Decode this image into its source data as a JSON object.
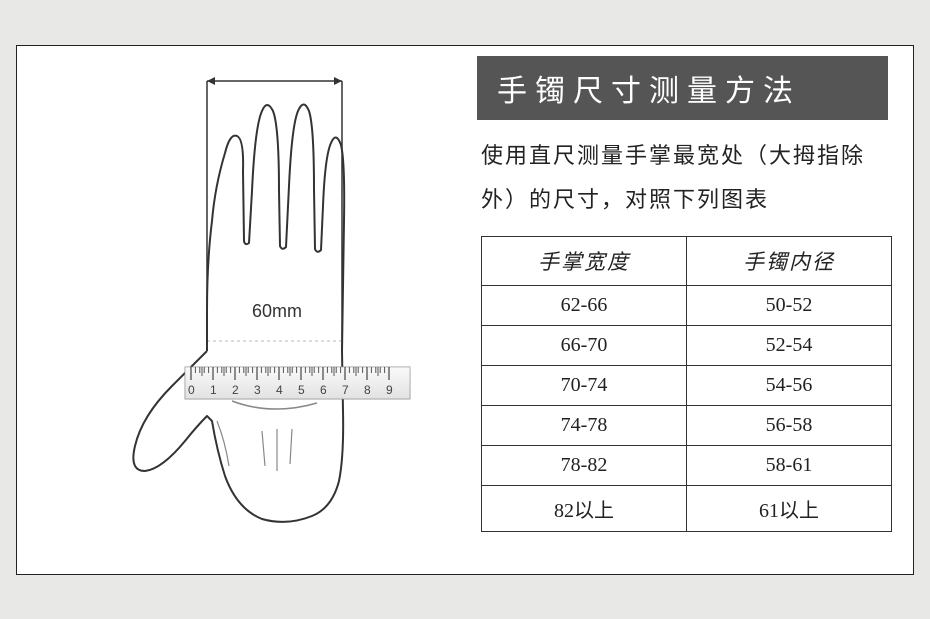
{
  "title": "手镯尺寸测量方法",
  "instructions": "使用直尺测量手掌最宽处（大拇指除外）的尺寸，对照下列图表",
  "measurement_label": "60mm",
  "table": {
    "headers": [
      "手掌宽度",
      "手镯内径"
    ],
    "rows": [
      [
        "62-66",
        "50-52"
      ],
      [
        "66-70",
        "52-54"
      ],
      [
        "70-74",
        "54-56"
      ],
      [
        "74-78",
        "56-58"
      ],
      [
        "78-82",
        "58-61"
      ],
      [
        "82以上",
        "61以上"
      ]
    ]
  },
  "ruler": {
    "digits": [
      "0",
      "1",
      "2",
      "3",
      "4",
      "5",
      "6",
      "7",
      "8",
      "9"
    ]
  },
  "colors": {
    "title_bg": "#555555",
    "title_fg": "#ffffff",
    "border": "#333333",
    "text": "#222222",
    "page_bg": "#e8e8e6",
    "frame_bg": "#ffffff"
  }
}
